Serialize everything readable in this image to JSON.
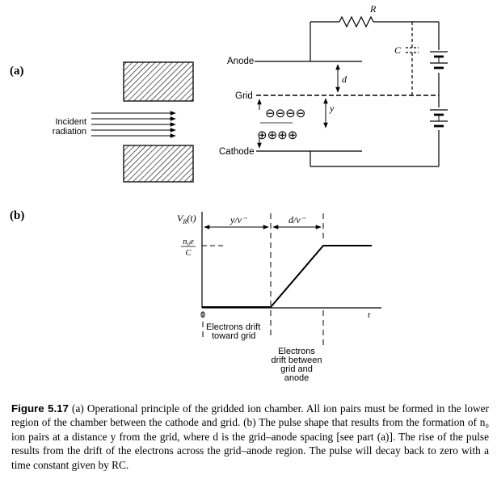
{
  "panel_a": {
    "label": "(a)",
    "anode": "Anode",
    "grid": "Grid",
    "cathode": "Cathode",
    "incident_line1": "Incident",
    "incident_line2": "radiation",
    "resistor": "R",
    "capacitor": "C",
    "gap_d": "d",
    "gap_y": "y",
    "negative_ions": "⊖⊖⊖⊖",
    "positive_ions": "⊕⊕⊕⊕"
  },
  "panel_b": {
    "label": "(b)",
    "y_axis_label": "V",
    "y_axis_sub": "R",
    "y_axis_arg": "(t)",
    "level_numerator": "n₀e",
    "level_denominator": "C",
    "interval1": "y/v⁻",
    "interval2": "d/v⁻",
    "origin": "0",
    "t_axis": "t",
    "annotation1_line1": "Electrons drift",
    "annotation1_line2": "toward grid",
    "annotation2_line1": "Electrons",
    "annotation2_line2": "drift between",
    "annotation2_line3": "grid and",
    "annotation2_line4": "anode"
  },
  "caption": {
    "figure_label": "Figure 5.17",
    "text": "(a) Operational principle of the gridded ion chamber. All ion pairs must be formed in the lower region of the chamber between the cathode and grid. (b) The pulse shape that results from the formation of n₀ ion pairs at a distance y from the grid, where d is the grid–anode spacing [see part (a)]. The rise of the pulse results from the drift of the electrons across the grid–anode region. The pulse will decay back to zero with a time constant given by RC."
  }
}
